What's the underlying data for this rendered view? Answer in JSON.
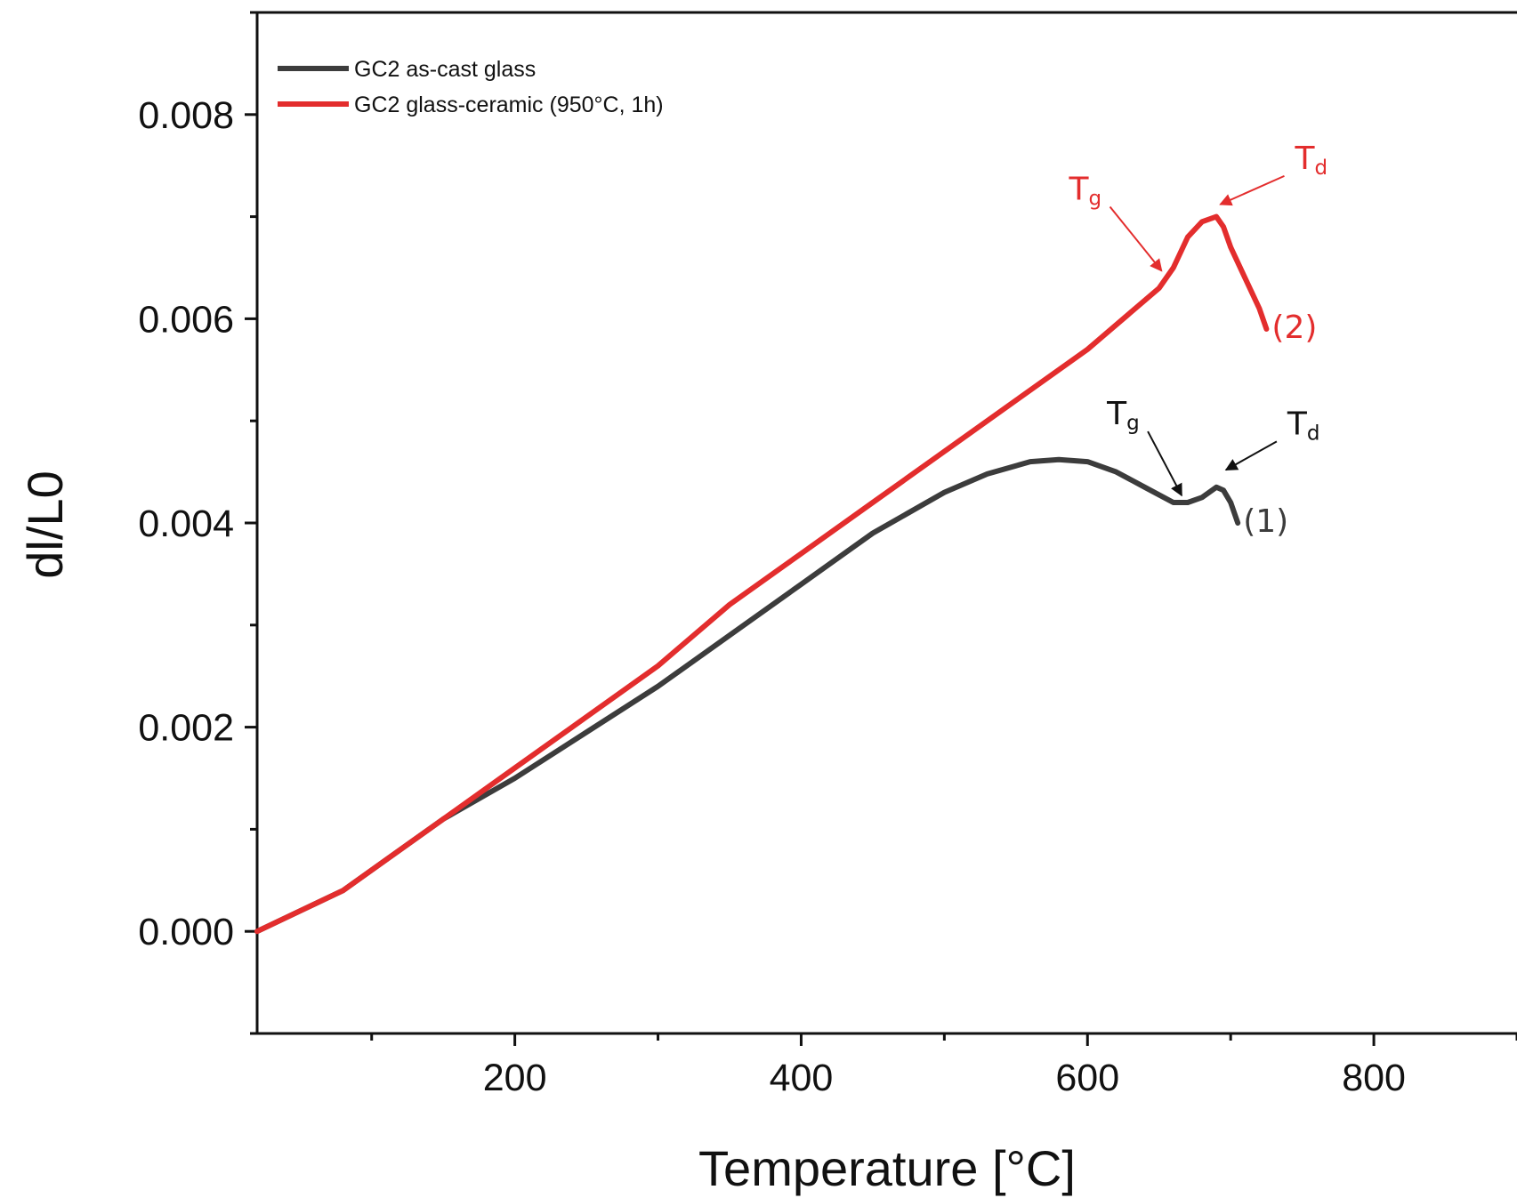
{
  "chart_data": {
    "type": "line",
    "xlabel": "Temperature [°C]",
    "ylabel": "dl/L0",
    "xlim": [
      20,
      900
    ],
    "ylim": [
      -0.001,
      0.009
    ],
    "x_ticks": [
      200,
      400,
      600,
      800
    ],
    "x_tick_labels": [
      "200",
      "400",
      "600",
      "800"
    ],
    "y_ticks": [
      0.0,
      0.002,
      0.004,
      0.006,
      0.008
    ],
    "y_tick_labels": [
      "0.000",
      "0.002",
      "0.004",
      "0.006",
      "0.008"
    ],
    "legend_position": "top-left",
    "colors": {
      "series_1": "#3c3c3c",
      "series_2": "#e32d2d"
    },
    "series": [
      {
        "name": "GC2 as-cast glass",
        "end_label": "(1)",
        "color": "#3c3c3c",
        "x": [
          20,
          50,
          80,
          110,
          150,
          200,
          250,
          300,
          350,
          400,
          450,
          500,
          530,
          560,
          580,
          600,
          620,
          640,
          660,
          670,
          680,
          690,
          695,
          700,
          705
        ],
        "y": [
          0.0,
          0.0002,
          0.0004,
          0.0007,
          0.0011,
          0.0015,
          0.00195,
          0.0024,
          0.0029,
          0.0034,
          0.0039,
          0.0043,
          0.00448,
          0.0046,
          0.00462,
          0.0046,
          0.0045,
          0.00435,
          0.0042,
          0.0042,
          0.00425,
          0.00435,
          0.00432,
          0.0042,
          0.004
        ]
      },
      {
        "name": "GC2 glass-ceramic (950°C, 1h)",
        "end_label": "(2)",
        "color": "#e32d2d",
        "x": [
          20,
          50,
          80,
          110,
          150,
          200,
          250,
          300,
          350,
          400,
          450,
          500,
          550,
          600,
          650,
          660,
          670,
          680,
          690,
          695,
          700,
          710,
          720,
          725
        ],
        "y": [
          0.0,
          0.0002,
          0.0004,
          0.0007,
          0.0011,
          0.0016,
          0.0021,
          0.0026,
          0.0032,
          0.0037,
          0.0042,
          0.0047,
          0.0052,
          0.0057,
          0.0063,
          0.0065,
          0.0068,
          0.00695,
          0.007,
          0.0069,
          0.0067,
          0.0064,
          0.0061,
          0.0059
        ]
      }
    ],
    "annotations": [
      {
        "text": "T",
        "sub": "g",
        "color": "#e32d2d",
        "target_x": 653,
        "target_y": 0.0064
      },
      {
        "text": "T",
        "sub": "d",
        "color": "#e32d2d",
        "target_x": 689,
        "target_y": 0.00705
      },
      {
        "text": "T",
        "sub": "g",
        "color": "#111111",
        "target_x": 667,
        "target_y": 0.0042
      },
      {
        "text": "T",
        "sub": "d",
        "color": "#111111",
        "target_x": 693,
        "target_y": 0.00445
      }
    ]
  }
}
